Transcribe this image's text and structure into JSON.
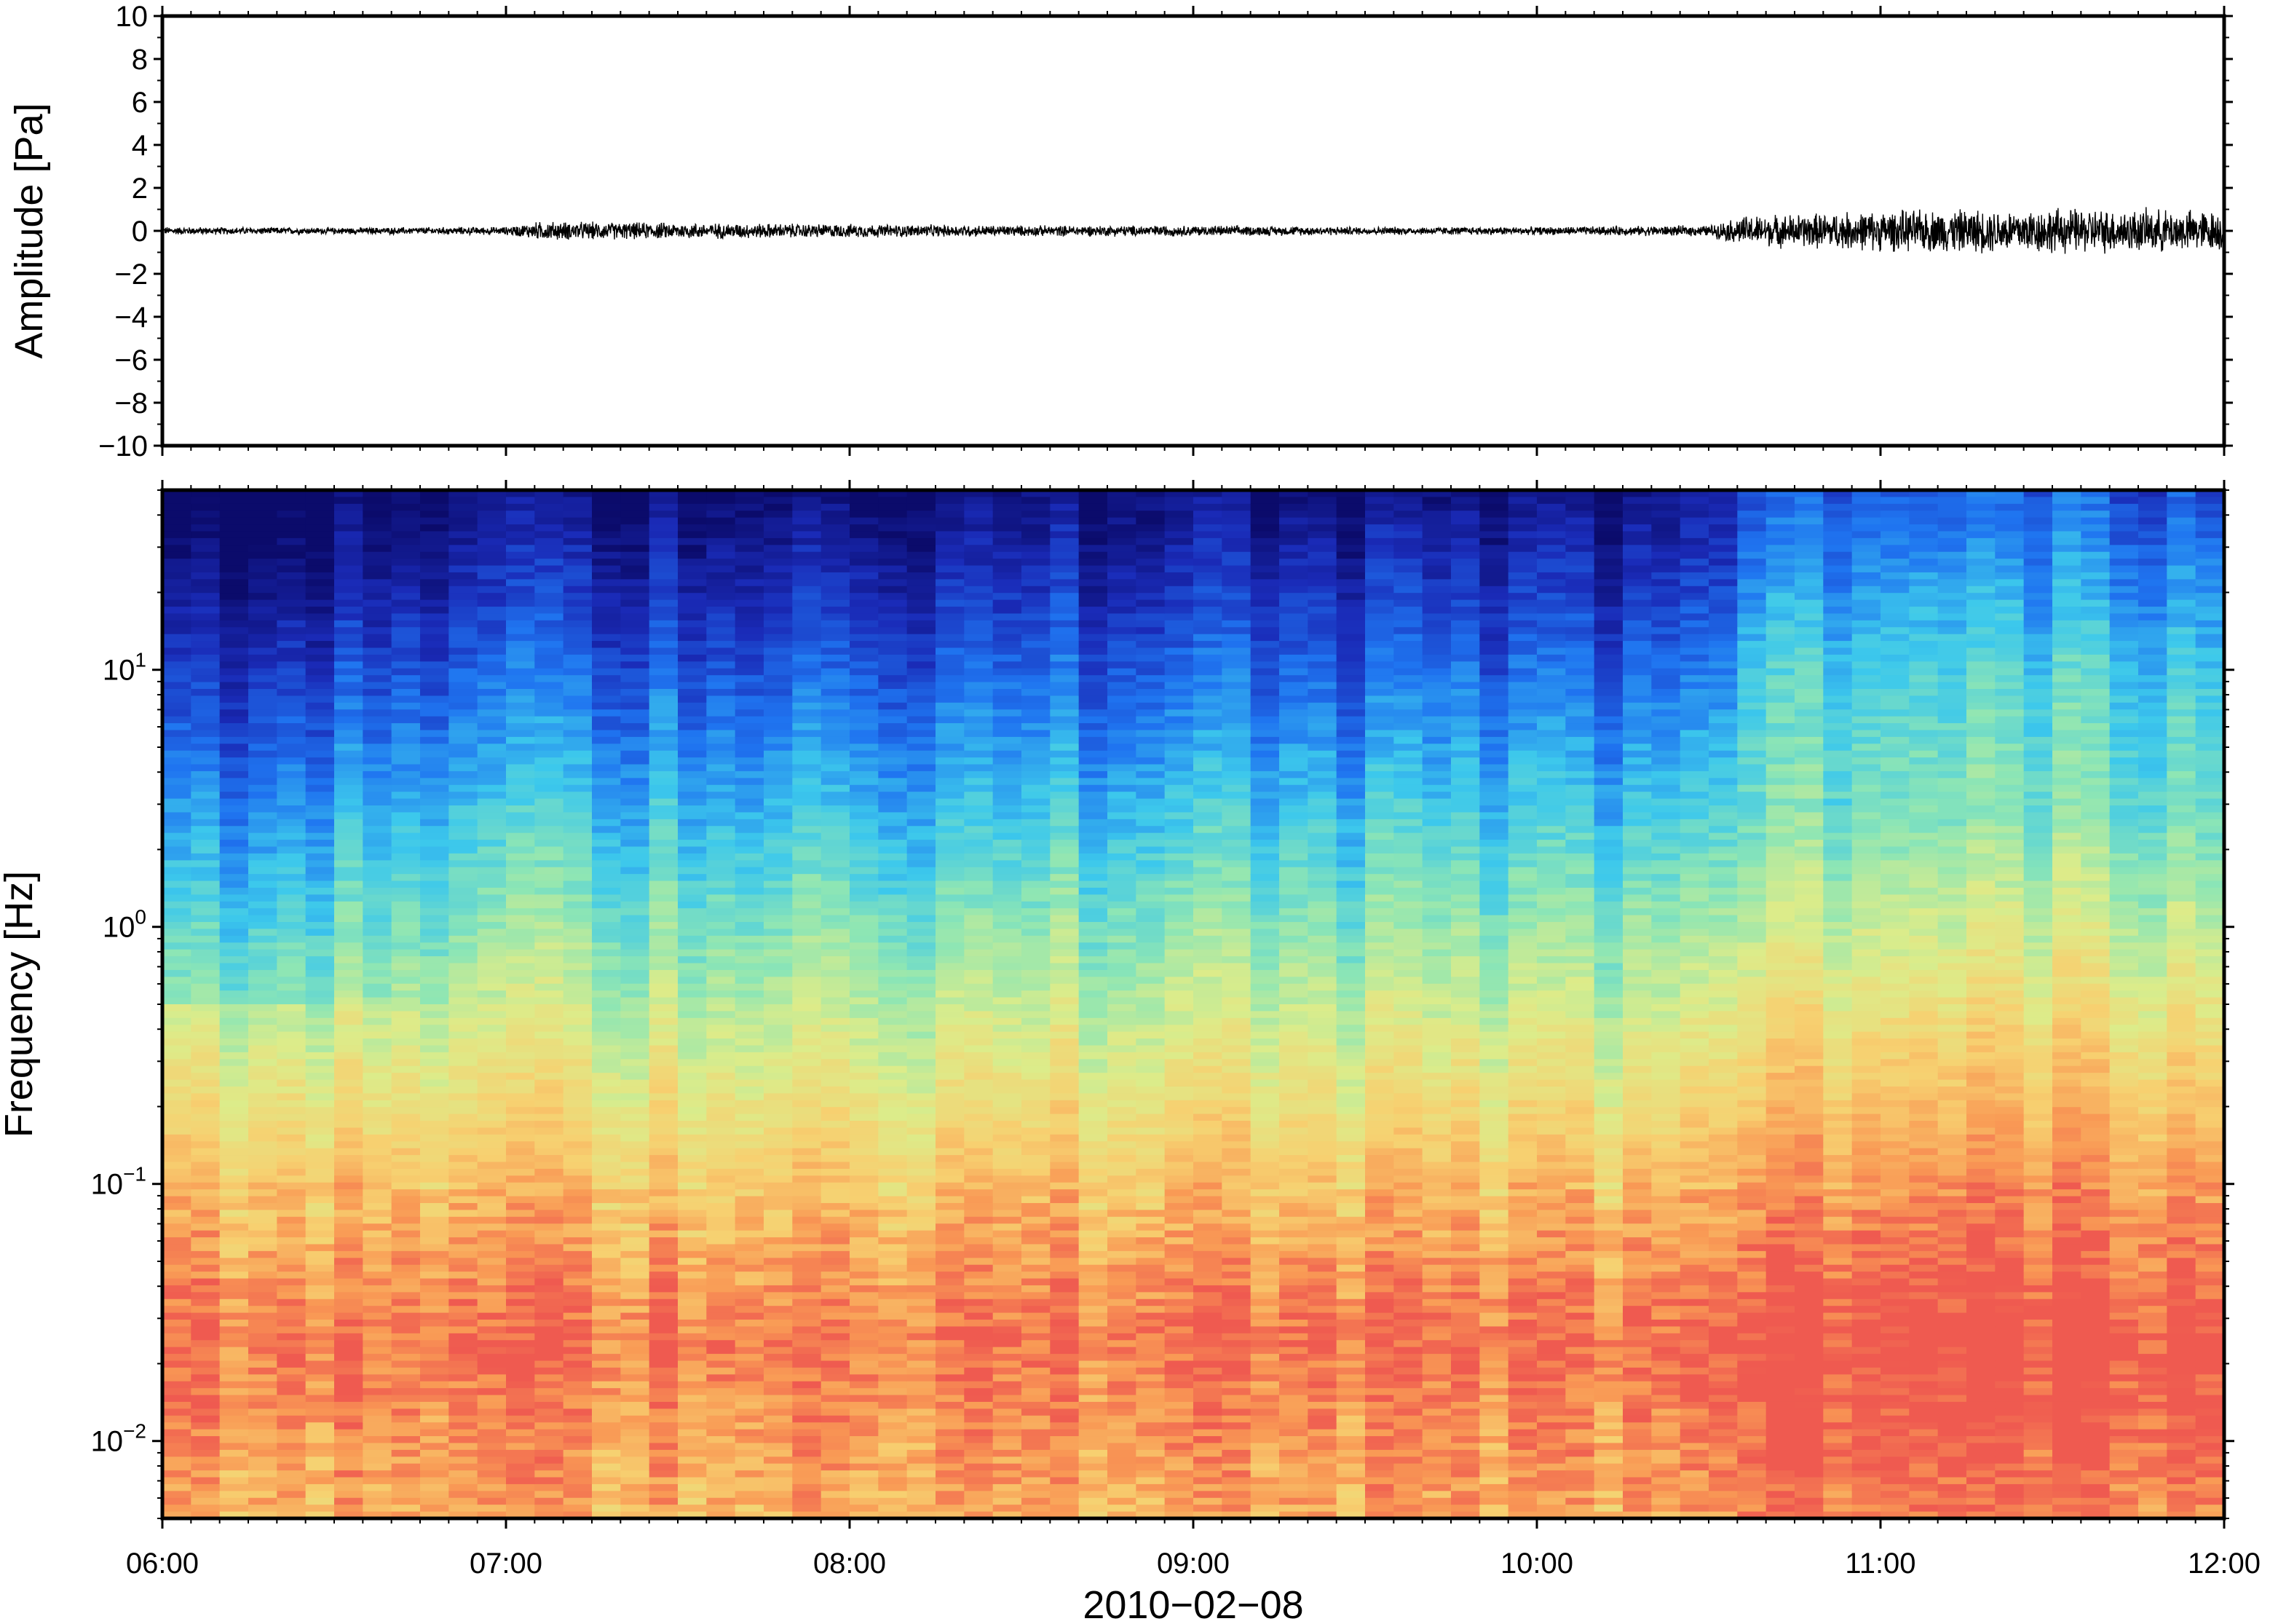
{
  "chart_data": [
    {
      "type": "line",
      "panel": "waveform",
      "ylabel": "Amplitude [Pa]",
      "ylim": [
        -10,
        10
      ],
      "yticks": [
        10,
        8,
        6,
        4,
        2,
        0,
        -2,
        -4,
        -6,
        -8,
        -10
      ],
      "ytick_labels": [
        "10",
        "8",
        "6",
        "4",
        "2",
        "0",
        "−2",
        "−4",
        "−6",
        "−8",
        "−10"
      ],
      "x_range": [
        "06:00",
        "12:00"
      ],
      "envelope": {
        "description_hours": [
          6.0,
          6.5,
          7.0,
          7.1,
          7.5,
          8.0,
          8.5,
          9.0,
          9.5,
          10.0,
          10.5,
          10.6,
          11.0,
          11.5,
          12.0
        ],
        "amplitude": [
          0.15,
          0.12,
          0.15,
          0.35,
          0.3,
          0.25,
          0.2,
          0.2,
          0.15,
          0.15,
          0.2,
          0.55,
          0.75,
          0.85,
          0.75
        ]
      },
      "line_color": "#000000"
    },
    {
      "type": "heatmap",
      "panel": "spectrogram",
      "ylabel": "Frequency [Hz]",
      "yscale": "log",
      "ylim": [
        0.005,
        50
      ],
      "yticks": [
        0.01,
        0.1,
        1,
        10
      ],
      "ytick_labels": [
        {
          "base": "10",
          "exp": "−2"
        },
        {
          "base": "10",
          "exp": "−1"
        },
        {
          "base": "10",
          "exp": "0"
        },
        {
          "base": "10",
          "exp": "1"
        }
      ],
      "xlabel": "2010−02−08",
      "xticks": [
        "06:00",
        "07:00",
        "08:00",
        "09:00",
        "10:00",
        "11:00",
        "12:00"
      ],
      "colormap": [
        "#0b0b6b",
        "#1a2bb8",
        "#1f74f0",
        "#3cc8ec",
        "#8ee6b4",
        "#dcec8a",
        "#f7d070",
        "#f99a55",
        "#ef5a50"
      ]
    }
  ]
}
